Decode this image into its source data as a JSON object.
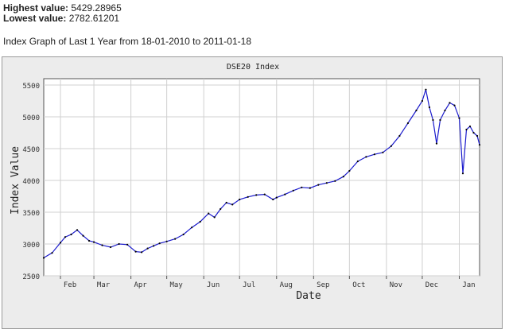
{
  "header": {
    "highest_label": "Highest value:",
    "highest_value": "5429.28965",
    "lowest_label": "Lowest value:",
    "lowest_value": "2782.61201",
    "graph_title": "Index Graph of Last 1 Year from 18-01-2010 to 2011-01-18"
  },
  "chart_data": {
    "type": "line",
    "title": "DSE20 Index",
    "xlabel": "Date",
    "ylabel": "Index Value",
    "ylim": [
      2500,
      5600
    ],
    "yticks": [
      2500,
      3000,
      3500,
      4000,
      4500,
      5000,
      5500
    ],
    "grid": true,
    "x_tick_labels": [
      "Feb",
      "Mar",
      "Apr",
      "May",
      "Jun",
      "Jul",
      "Aug",
      "Sep",
      "Oct",
      "Nov",
      "Dec",
      "Jan"
    ],
    "x_tick_dates": [
      "2010-02-01",
      "2010-03-01",
      "2010-04-01",
      "2010-05-01",
      "2010-06-01",
      "2010-07-01",
      "2010-08-01",
      "2010-09-01",
      "2010-10-01",
      "2010-11-01",
      "2010-12-01",
      "2011-01-01"
    ],
    "x_start": "2010-01-18",
    "x_end": "2011-01-18",
    "series": [
      {
        "color": "#1a1acc",
        "x": [
          "2010-01-18",
          "2010-01-25",
          "2010-02-01",
          "2010-02-05",
          "2010-02-10",
          "2010-02-15",
          "2010-02-20",
          "2010-02-25",
          "2010-03-01",
          "2010-03-08",
          "2010-03-15",
          "2010-03-22",
          "2010-03-29",
          "2010-04-05",
          "2010-04-10",
          "2010-04-15",
          "2010-04-20",
          "2010-04-25",
          "2010-05-01",
          "2010-05-08",
          "2010-05-15",
          "2010-05-22",
          "2010-05-29",
          "2010-06-05",
          "2010-06-10",
          "2010-06-15",
          "2010-06-20",
          "2010-06-25",
          "2010-07-01",
          "2010-07-08",
          "2010-07-15",
          "2010-07-22",
          "2010-07-29",
          "2010-08-01",
          "2010-08-08",
          "2010-08-15",
          "2010-08-22",
          "2010-08-29",
          "2010-09-05",
          "2010-09-12",
          "2010-09-19",
          "2010-09-26",
          "2010-10-01",
          "2010-10-08",
          "2010-10-15",
          "2010-10-22",
          "2010-10-29",
          "2010-11-05",
          "2010-11-12",
          "2010-11-19",
          "2010-11-26",
          "2010-12-01",
          "2010-12-04",
          "2010-12-07",
          "2010-12-10",
          "2010-12-13",
          "2010-12-16",
          "2010-12-20",
          "2010-12-24",
          "2010-12-28",
          "2011-01-01",
          "2011-01-04",
          "2011-01-07",
          "2011-01-10",
          "2011-01-13",
          "2011-01-16",
          "2011-01-18"
        ],
        "values": [
          2782,
          2860,
          3020,
          3110,
          3150,
          3220,
          3130,
          3050,
          3030,
          2980,
          2950,
          3000,
          2990,
          2880,
          2870,
          2930,
          2970,
          3010,
          3040,
          3080,
          3150,
          3260,
          3350,
          3480,
          3420,
          3550,
          3650,
          3620,
          3700,
          3740,
          3770,
          3780,
          3700,
          3730,
          3780,
          3840,
          3890,
          3880,
          3930,
          3960,
          3990,
          4060,
          4150,
          4300,
          4370,
          4410,
          4440,
          4540,
          4700,
          4900,
          5100,
          5250,
          5429,
          5150,
          4950,
          4580,
          4950,
          5100,
          5220,
          5180,
          4980,
          4110,
          4800,
          4850,
          4750,
          4700,
          4560
        ]
      }
    ]
  }
}
